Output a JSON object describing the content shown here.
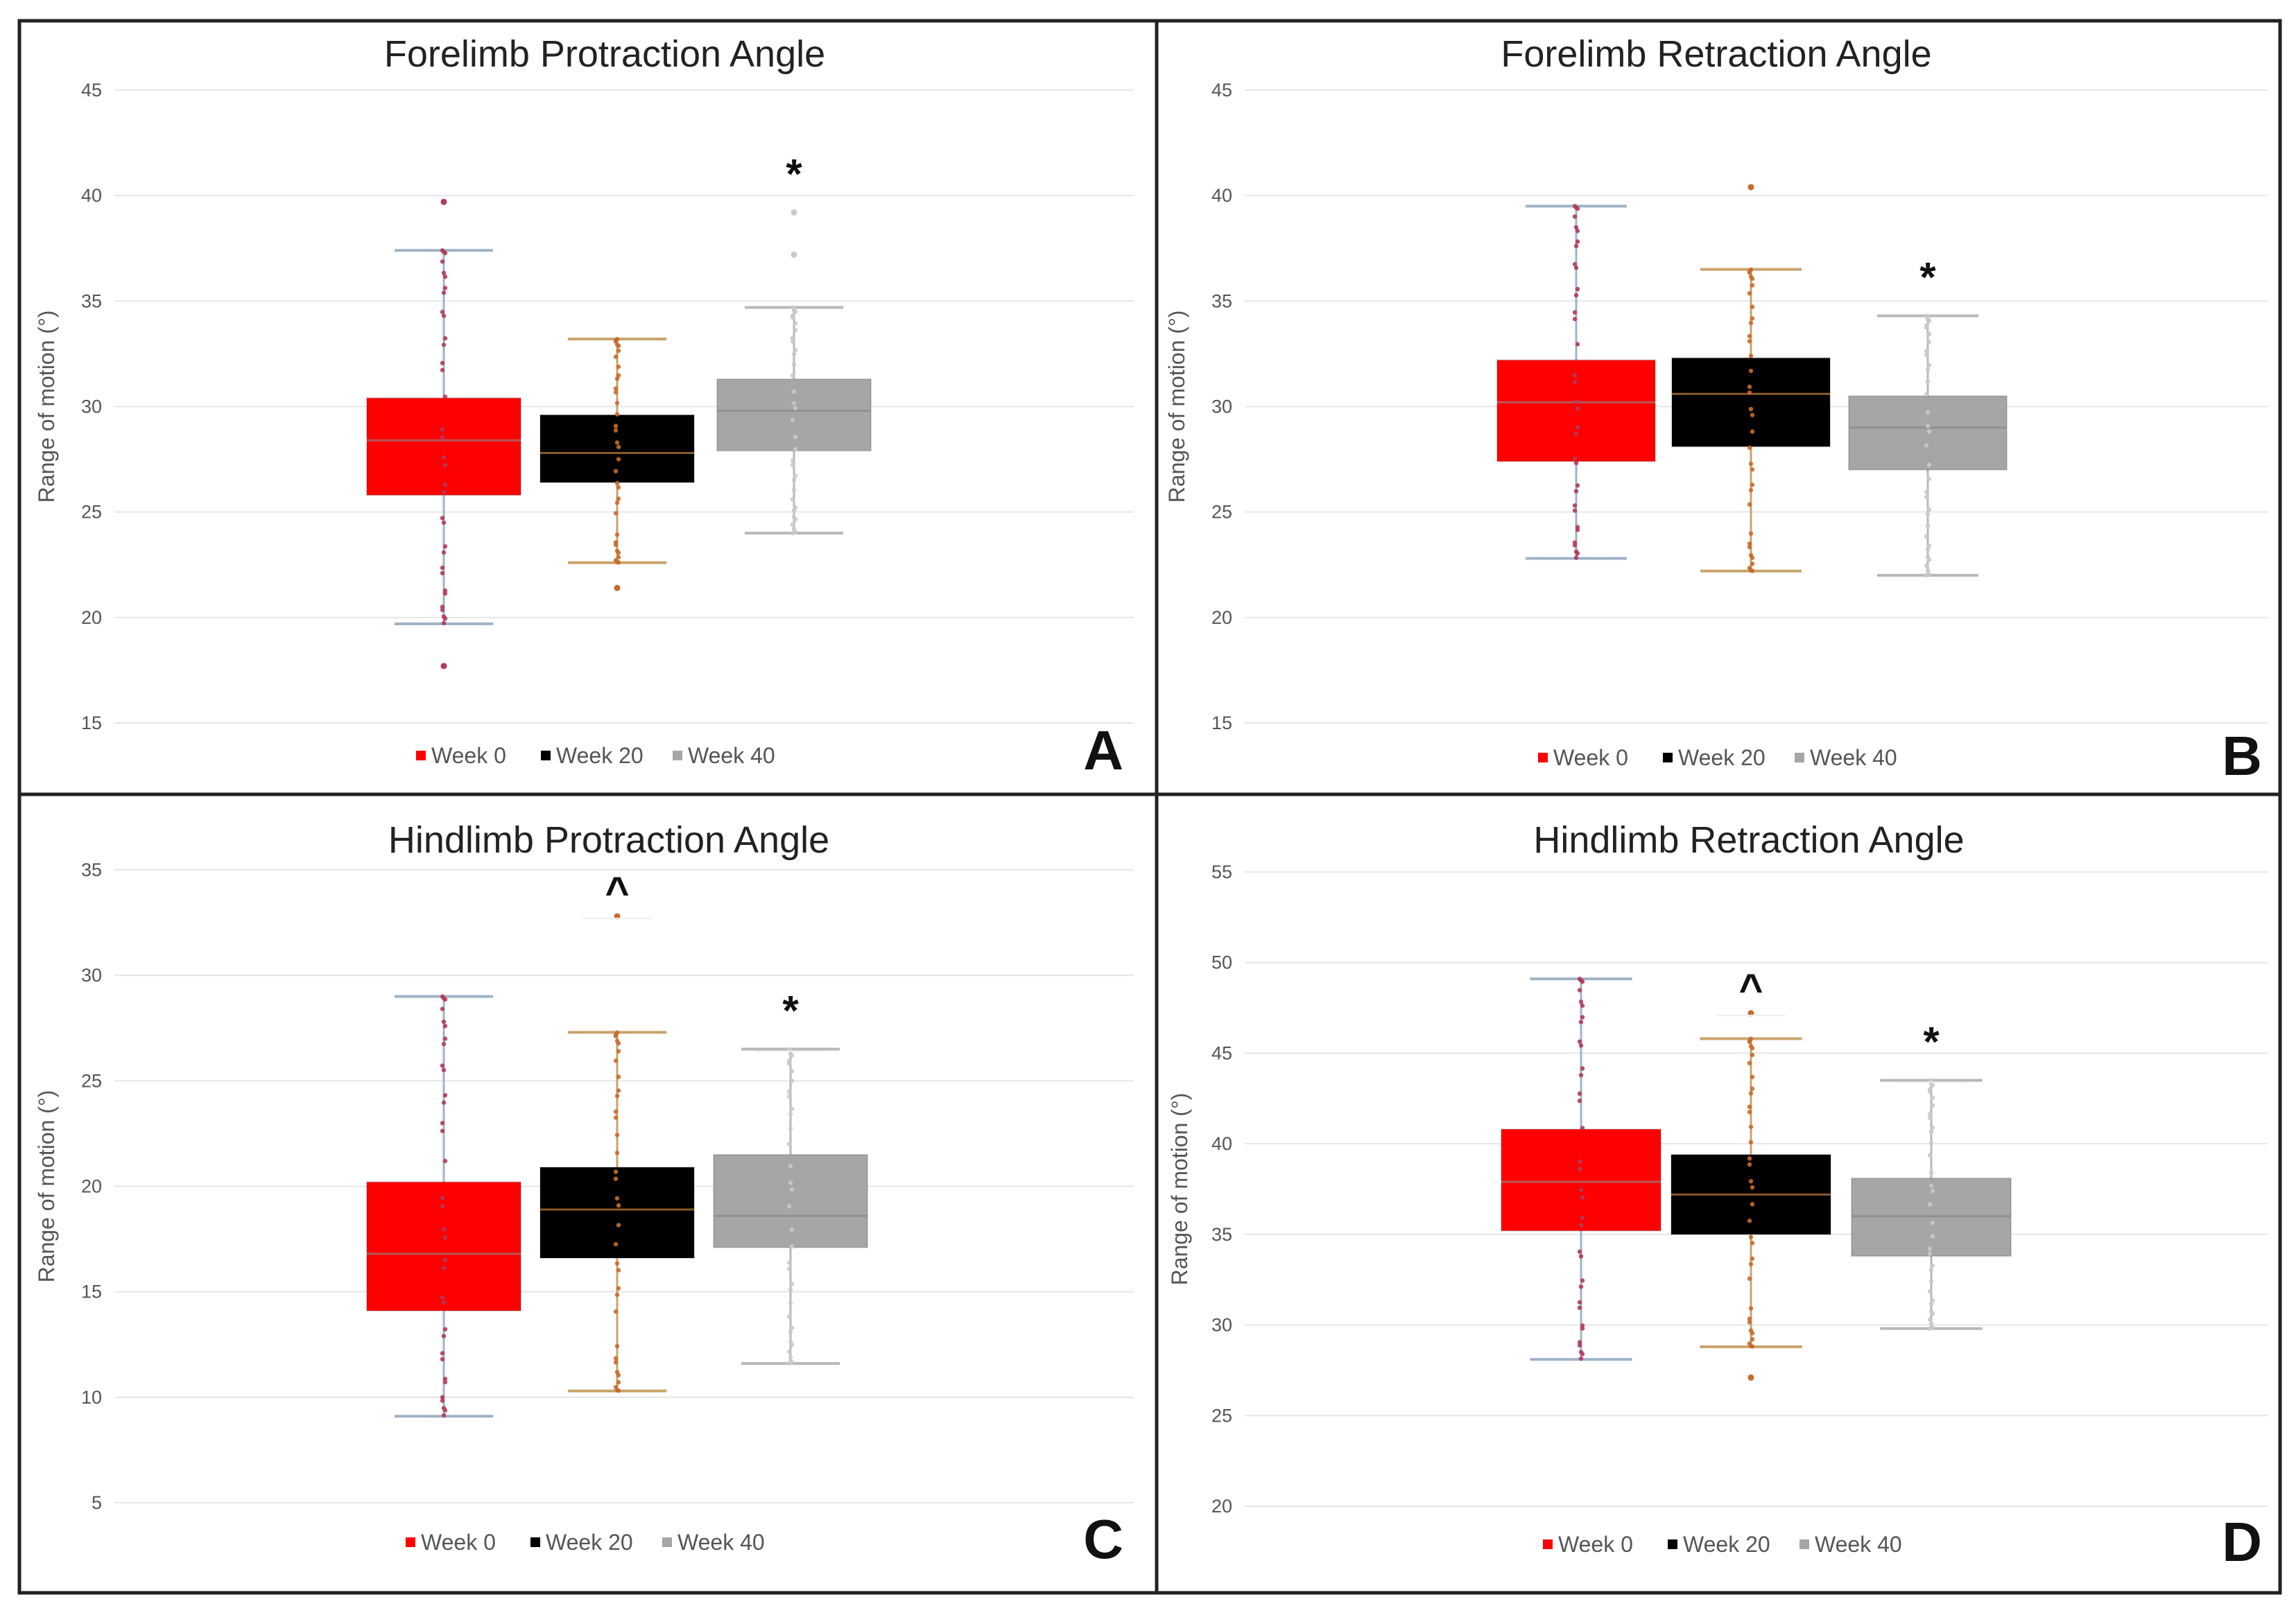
{
  "colors": {
    "week0": "#ff0000",
    "week20": "#000000",
    "week40": "#a6a6a6",
    "whisker0": "#9fb3c8",
    "whisker20": "#c9a46b",
    "whisker40": "#b8b8b8",
    "dots0": "#b03a5b",
    "dots20": "#c86a2a",
    "dots40": "#c9c9c9"
  },
  "chart_data": [
    {
      "type": "box",
      "title": "Forelimb Protraction Angle",
      "ylabel": "Range of motion (°)",
      "ylim": [
        15,
        45
      ],
      "yticks": [
        15,
        20,
        25,
        30,
        35,
        40,
        45
      ],
      "legend": [
        "Week 0",
        "Week 20",
        "Week 40"
      ],
      "panel_label": "A",
      "series": [
        {
          "name": "Week 0",
          "min": 19.7,
          "q1": 25.8,
          "median": 28.4,
          "q3": 30.4,
          "max": 37.4,
          "outliers": [
            39.7,
            17.7
          ],
          "sig": ""
        },
        {
          "name": "Week 20",
          "min": 22.6,
          "q1": 26.4,
          "median": 27.8,
          "q3": 29.6,
          "max": 33.2,
          "outliers": [
            21.4
          ],
          "sig": ""
        },
        {
          "name": "Week 40",
          "min": 24.0,
          "q1": 27.9,
          "median": 29.8,
          "q3": 31.3,
          "max": 34.7,
          "outliers": [
            37.2,
            39.2
          ],
          "sig": "*"
        }
      ]
    },
    {
      "type": "box",
      "title": "Forelimb Retraction Angle",
      "ylabel": "Range of motion (°)",
      "ylim": [
        15,
        45
      ],
      "yticks": [
        15,
        20,
        25,
        30,
        35,
        40,
        45
      ],
      "legend": [
        "Week 0",
        "Week 20",
        "Week 40"
      ],
      "panel_label": "B",
      "series": [
        {
          "name": "Week 0",
          "min": 22.8,
          "q1": 27.4,
          "median": 30.2,
          "q3": 32.2,
          "max": 39.5,
          "outliers": [],
          "sig": ""
        },
        {
          "name": "Week 20",
          "min": 22.2,
          "q1": 28.1,
          "median": 30.6,
          "q3": 32.3,
          "max": 36.5,
          "outliers": [
            40.4
          ],
          "sig": ""
        },
        {
          "name": "Week 40",
          "min": 22.0,
          "q1": 27.0,
          "median": 29.0,
          "q3": 30.5,
          "max": 34.3,
          "outliers": [],
          "sig": "*"
        }
      ]
    },
    {
      "type": "box",
      "title": "Hindlimb Protraction Angle",
      "ylabel": "Range of motion (°)",
      "ylim": [
        5,
        35
      ],
      "yticks": [
        5,
        10,
        15,
        20,
        25,
        30,
        35
      ],
      "legend": [
        "Week 0",
        "Week 20",
        "Week 40"
      ],
      "panel_label": "C",
      "series": [
        {
          "name": "Week 0",
          "min": 9.1,
          "q1": 14.1,
          "median": 16.8,
          "q3": 20.2,
          "max": 29.0,
          "outliers": [],
          "sig": ""
        },
        {
          "name": "Week 20",
          "min": 10.3,
          "q1": 16.6,
          "median": 18.9,
          "q3": 20.9,
          "max": 27.3,
          "outliers": [
            32.8
          ],
          "sig": "^"
        },
        {
          "name": "Week 40",
          "min": 11.6,
          "q1": 17.1,
          "median": 18.6,
          "q3": 21.5,
          "max": 26.5,
          "outliers": [],
          "sig": "*"
        }
      ]
    },
    {
      "type": "box",
      "title": "Hindlimb Retraction Angle",
      "ylabel": "Range of motion (°)",
      "ylim": [
        20,
        55
      ],
      "yticks": [
        20,
        25,
        30,
        35,
        40,
        45,
        50,
        55
      ],
      "legend": [
        "Week 0",
        "Week 20",
        "Week 40"
      ],
      "panel_label": "D",
      "series": [
        {
          "name": "Week 0",
          "min": 28.1,
          "q1": 35.2,
          "median": 37.9,
          "q3": 40.8,
          "max": 49.1,
          "outliers": [],
          "sig": ""
        },
        {
          "name": "Week 20",
          "min": 28.8,
          "q1": 35.0,
          "median": 37.2,
          "q3": 39.4,
          "max": 45.8,
          "outliers": [
            47.2,
            27.1
          ],
          "sig": "^"
        },
        {
          "name": "Week 40",
          "min": 29.8,
          "q1": 33.8,
          "median": 36.0,
          "q3": 38.1,
          "max": 43.5,
          "outliers": [],
          "sig": "*"
        }
      ]
    }
  ]
}
